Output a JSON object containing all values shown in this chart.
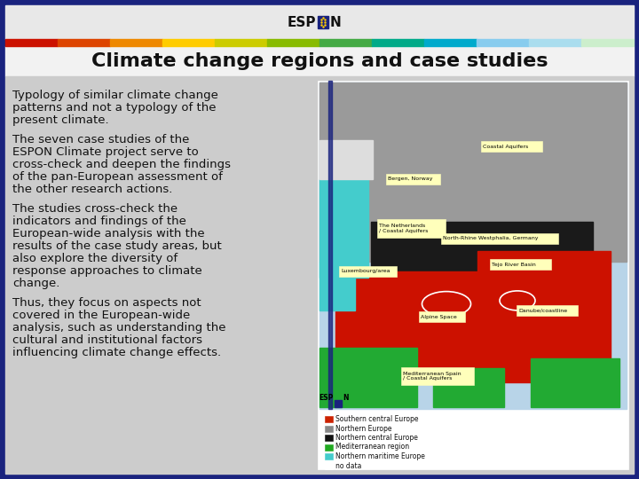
{
  "title": "Climate change regions and case studies",
  "title_fontsize": 16,
  "body_text": [
    "Typology of similar climate change\npatterns and not a typology of the\npresent climate.",
    "The seven case studies of the\nESPON Climate project serve to\ncross-check and deepen the findings\nof the pan-European assessment of\nthe other research actions.",
    "The studies cross-check the\nindicators and findings of the\nEuropean-wide analysis with the\nresults of the case study areas, but\nalso explore the diversity of\nresponse approaches to climate\nchange.",
    "Thus, they focus on aspects not\ncovered in the European-wide\nanalysis, such as understanding the\ncultural and institutional factors\ninfluencing climate change effects."
  ],
  "body_fontsize": 9.5,
  "dark_blue": "#1a237e",
  "slide_bg": "#cccccc",
  "header_bg": "#e8e8e8",
  "title_bar_bg": "#f2f2f2",
  "rainbow_colors": [
    "#cc1100",
    "#dd4400",
    "#ee8800",
    "#ffcc00",
    "#cccc00",
    "#88bb00",
    "#44aa44",
    "#00aa88",
    "#00aacc",
    "#88ccee",
    "#aaddee",
    "#cceecc"
  ],
  "text_color": "#111111",
  "map_legend": [
    [
      "#cc2200",
      "Southern central Europe"
    ],
    [
      "#888888",
      "Northern Europe"
    ],
    [
      "#111111",
      "Northern central Europe"
    ],
    [
      "#22aa22",
      "Mediterranean region"
    ],
    [
      "#44cccc",
      "Northern maritime Europe"
    ],
    [
      "#ffffff",
      "no data"
    ]
  ]
}
